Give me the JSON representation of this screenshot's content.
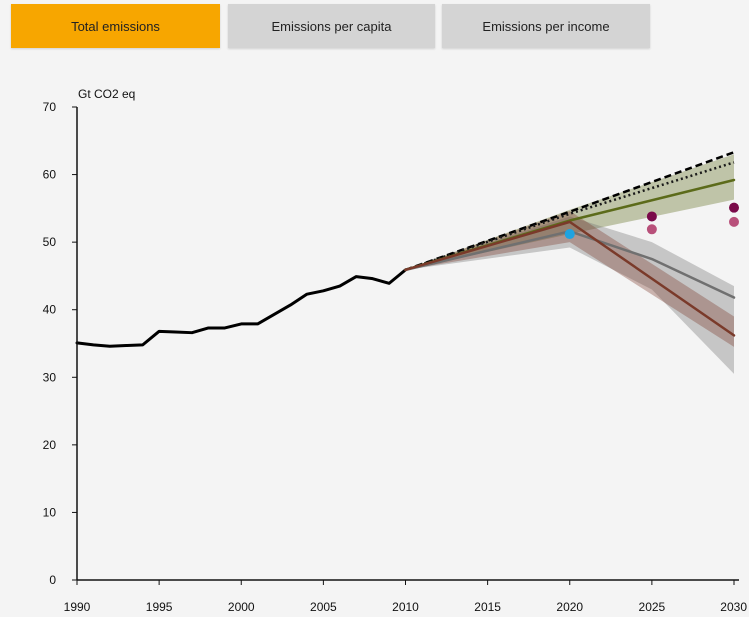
{
  "tabs": [
    {
      "label": "Total emissions",
      "active": true
    },
    {
      "label": "Emissions per capita",
      "active": false
    },
    {
      "label": "Emissions per income",
      "active": false
    }
  ],
  "colors": {
    "active_tab": "#f7a600",
    "inactive_tab": "#d4d4d4",
    "historical": "#000000",
    "baseline_dashed": "#000000",
    "baseline_dotted": "#1a1a1a",
    "olive_line": "#5c6b1a",
    "olive_band": "#a8ad3a",
    "grey_line": "#707070",
    "grey_band": "#9a9a9a",
    "brown_line": "#7a3a2a",
    "brown_band": "#a05a4a",
    "marker_blue": "#1fa3e0",
    "marker_dark": "#7a0a4a",
    "marker_light": "#b8507a"
  },
  "chart_data": {
    "type": "line",
    "ylabel": "Gt CO2 eq",
    "xlim": [
      1990,
      2030
    ],
    "ylim": [
      0,
      70
    ],
    "x_ticks": [
      1990,
      1995,
      2000,
      2005,
      2010,
      2015,
      2020,
      2025,
      2030
    ],
    "y_ticks": [
      0,
      10,
      20,
      30,
      40,
      50,
      60,
      70
    ],
    "grid": false,
    "series": [
      {
        "style": "solid",
        "color": "#000000",
        "x": [
          1990,
          1991,
          1992,
          1993,
          1994,
          1995,
          1996,
          1997,
          1998,
          1999,
          2000,
          2001,
          2002,
          2003,
          2004,
          2005,
          2006,
          2007,
          2008,
          2009,
          2010
        ],
        "y": [
          35.1,
          34.8,
          34.6,
          34.7,
          34.8,
          36.8,
          36.7,
          36.6,
          37.3,
          37.3,
          37.9,
          37.9,
          39.3,
          40.7,
          42.3,
          42.8,
          43.5,
          44.9,
          44.6,
          43.9,
          45.9
        ]
      },
      {
        "style": "dashed",
        "color": "#000000",
        "x": [
          2010,
          2020,
          2030
        ],
        "y": [
          45.9,
          54.5,
          63.3
        ]
      },
      {
        "style": "dotted",
        "color": "#1a1a1a",
        "x": [
          2010,
          2020,
          2030
        ],
        "y": [
          45.9,
          54.2,
          61.8
        ]
      },
      {
        "style": "solid",
        "color": "#5c6b1a",
        "x": [
          2010,
          2020,
          2030
        ],
        "y": [
          45.9,
          53.2,
          59.2
        ],
        "band_upper": [
          45.9,
          54.8,
          63.0
        ],
        "band_lower": [
          45.9,
          51.2,
          56.3
        ]
      },
      {
        "style": "solid",
        "color": "#707070",
        "x": [
          2010,
          2020,
          2025,
          2030
        ],
        "y": [
          45.9,
          51.6,
          47.5,
          41.8
        ],
        "band_upper": [
          45.9,
          53.8,
          50.0,
          43.5
        ],
        "band_lower": [
          45.9,
          49.2,
          43.0,
          30.5
        ]
      },
      {
        "style": "solid",
        "color": "#7a3a2a",
        "x": [
          2010,
          2020,
          2030
        ],
        "y": [
          45.9,
          53.0,
          36.2
        ],
        "band_upper": [
          45.9,
          54.6,
          39.0
        ],
        "band_lower": [
          45.9,
          50.0,
          34.5
        ]
      }
    ],
    "points": [
      {
        "x": 2020,
        "y": 51.2,
        "color": "#1fa3e0"
      },
      {
        "x": 2025,
        "y": 53.8,
        "color": "#7a0a4a"
      },
      {
        "x": 2025,
        "y": 51.9,
        "color": "#b8507a"
      },
      {
        "x": 2030,
        "y": 55.1,
        "color": "#7a0a4a"
      },
      {
        "x": 2030,
        "y": 53.0,
        "color": "#b8507a"
      }
    ]
  }
}
